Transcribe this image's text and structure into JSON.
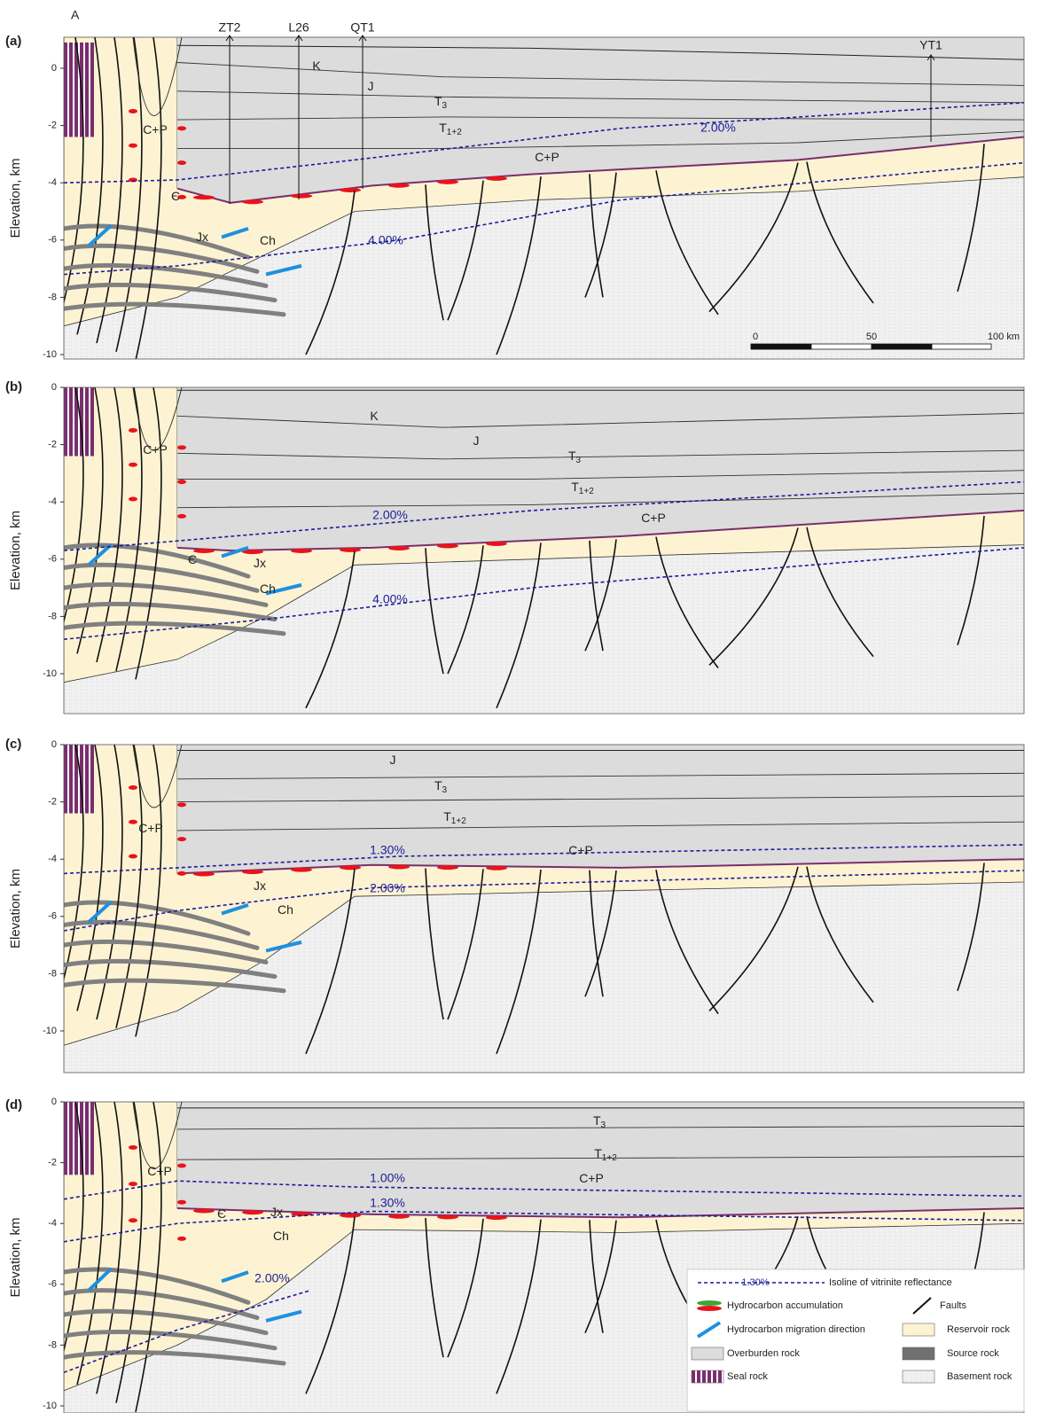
{
  "section_end": "A",
  "wells": [
    "ZT2",
    "L26",
    "QT1",
    "YT1"
  ],
  "scale_bar": [
    "0",
    "50",
    "100 km"
  ],
  "panels": [
    {
      "label": "(a)",
      "y_label": "Elevation, km",
      "yticks": [
        "0",
        "-2",
        "-4",
        "-6",
        "-8",
        "-10"
      ],
      "strata": [
        {
          "text": "K"
        },
        {
          "text": "J"
        },
        {
          "text": "T",
          "sub": "3"
        },
        {
          "text": "T",
          "sub": "1+2"
        },
        {
          "text": "C+P"
        },
        {
          "text": "C+P"
        },
        {
          "text": "Є"
        },
        {
          "text": "Jx"
        },
        {
          "text": "Ch"
        }
      ],
      "isolines": [
        "2.00%",
        "4.00%"
      ]
    },
    {
      "label": "(b)",
      "y_label": "Elevation, km",
      "yticks": [
        "0",
        "-2",
        "-4",
        "-6",
        "-8",
        "-10"
      ],
      "strata": [
        {
          "text": "K"
        },
        {
          "text": "J"
        },
        {
          "text": "T",
          "sub": "3"
        },
        {
          "text": "T",
          "sub": "1+2"
        },
        {
          "text": "C+P"
        },
        {
          "text": "C+P"
        },
        {
          "text": "Є"
        },
        {
          "text": "Jx"
        },
        {
          "text": "Ch"
        }
      ],
      "isolines": [
        "2.00%",
        "4.00%"
      ]
    },
    {
      "label": "(c)",
      "y_label": "Elevation, km",
      "yticks": [
        "0",
        "-2",
        "-4",
        "-6",
        "-8",
        "-10"
      ],
      "strata": [
        {
          "text": "J"
        },
        {
          "text": "T",
          "sub": "3"
        },
        {
          "text": "T",
          "sub": "1+2"
        },
        {
          "text": "C+P"
        },
        {
          "text": "C+P"
        },
        {
          "text": "Jx"
        },
        {
          "text": "Ch"
        }
      ],
      "isolines": [
        "1.30%",
        "2.00%"
      ]
    },
    {
      "label": "(d)",
      "y_label": "Elevation, km",
      "yticks": [
        "0",
        "-2",
        "-4",
        "-6",
        "-8",
        "-10"
      ],
      "strata": [
        {
          "text": "T",
          "sub": "3"
        },
        {
          "text": "T",
          "sub": "1+2"
        },
        {
          "text": "C+P"
        },
        {
          "text": "C+P"
        },
        {
          "text": "Є"
        },
        {
          "text": "Jx"
        },
        {
          "text": "Ch"
        }
      ],
      "isolines": [
        "1.00%",
        "1.30%",
        "2.00%"
      ]
    }
  ],
  "legend": {
    "isoline_sample": "1.30%",
    "items": [
      "Isoline of vitrinite reflectance",
      "Hydrocarbon accumulation",
      "Faults",
      "Hydrocarbon migration direction",
      "Reservoir rock",
      "Overburden rock",
      "Source rock",
      "Seal rock",
      "Basement rock"
    ]
  }
}
